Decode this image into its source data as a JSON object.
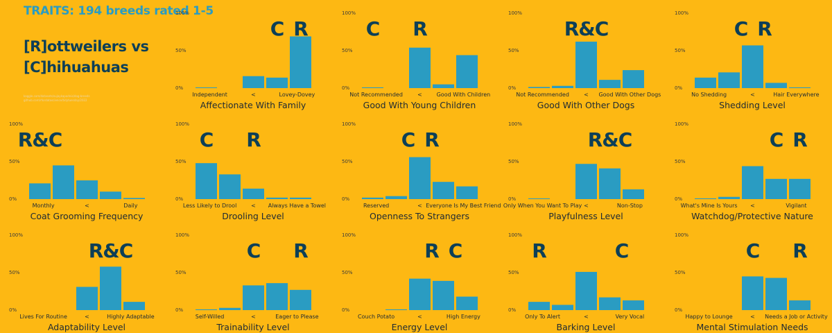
{
  "intro": {
    "title": "TRAITS: 194 breeds rated 1-5",
    "heading_line1": "[R]ottweilers vs",
    "heading_line2": "[C]hihuahuas",
    "source": "kaggle.com/datasets/sujaykapadnis/dog-breeds  github.com/rfordatascience/tidytuesday/2022"
  },
  "colors": {
    "background": "#FDB813",
    "bar": "#2a9cc2",
    "marker": "#0d3f57",
    "text": "#1e2a33"
  },
  "y_ticks": [
    "100%",
    "50%",
    "0%"
  ],
  "chart_data": [
    {
      "type": "bar",
      "title": "Affectionate With Family",
      "categories": [
        "1",
        "2",
        "3",
        "4",
        "5"
      ],
      "values": [
        0.5,
        0,
        16,
        14,
        69
      ],
      "ylim": [
        0,
        100
      ],
      "xlabel_left": "Independent",
      "xlabel_mid": "<",
      "xlabel_right": "Lovey-Dovey",
      "markers": [
        {
          "label": "C",
          "category": 4
        },
        {
          "label": "R",
          "category": 5
        }
      ]
    },
    {
      "type": "bar",
      "title": "Good With Young Children",
      "categories": [
        "1",
        "2",
        "3",
        "4",
        "5"
      ],
      "values": [
        1,
        0,
        54,
        5,
        44
      ],
      "ylim": [
        0,
        100
      ],
      "xlabel_left": "Not Recommended",
      "xlabel_mid": "<",
      "xlabel_right": "Good With Children",
      "markers": [
        {
          "label": "C",
          "category": 1
        },
        {
          "label": "R",
          "category": 3
        }
      ]
    },
    {
      "type": "bar",
      "title": "Good With Other Dogs",
      "categories": [
        "1",
        "2",
        "3",
        "4",
        "5"
      ],
      "values": [
        1.5,
        3,
        62,
        11,
        24
      ],
      "ylim": [
        0,
        100
      ],
      "xlabel_left": "Not Recommended",
      "xlabel_mid": "<",
      "xlabel_right": "Good With Other Dogs",
      "markers": [
        {
          "label": "R&C",
          "category": 3
        }
      ]
    },
    {
      "type": "bar",
      "title": "Shedding Level",
      "categories": [
        "1",
        "2",
        "3",
        "4",
        "5"
      ],
      "values": [
        14,
        21,
        57,
        7,
        1
      ],
      "ylim": [
        0,
        100
      ],
      "xlabel_left": "No Shedding",
      "xlabel_mid": "<",
      "xlabel_right": "Hair Everywhere",
      "markers": [
        {
          "label": "C",
          "category": 2.5
        },
        {
          "label": "R",
          "category": 3.5
        }
      ]
    },
    {
      "type": "bar",
      "title": "Coat Grooming Frequency",
      "categories": [
        "1",
        "2",
        "3",
        "4",
        "5"
      ],
      "values": [
        21,
        45,
        25,
        10,
        1.5
      ],
      "ylim": [
        0,
        100
      ],
      "xlabel_left": "Monthly",
      "xlabel_mid": "<",
      "xlabel_right": "Daily",
      "markers": [
        {
          "label": "R&C",
          "category": 1
        }
      ]
    },
    {
      "type": "bar",
      "title": "Drooling Level",
      "categories": [
        "1",
        "2",
        "3",
        "4",
        "5"
      ],
      "values": [
        48,
        33,
        14,
        2,
        2
      ],
      "ylim": [
        0,
        100
      ],
      "xlabel_left": "Less Likely to Drool",
      "xlabel_mid": "<",
      "xlabel_right": "Always Have a Towel",
      "markers": [
        {
          "label": "C",
          "category": 1
        },
        {
          "label": "R",
          "category": 3
        }
      ]
    },
    {
      "type": "bar",
      "title": "Openness To Strangers",
      "categories": [
        "1",
        "2",
        "3",
        "4",
        "5"
      ],
      "values": [
        2,
        4,
        56,
        23,
        17
      ],
      "ylim": [
        0,
        100
      ],
      "xlabel_left": "Reserved",
      "xlabel_mid": "<",
      "xlabel_right": "Everyone Is My Best Friend",
      "markers": [
        {
          "label": "C",
          "category": 2.5
        },
        {
          "label": "R",
          "category": 3.5
        }
      ]
    },
    {
      "type": "bar",
      "title": "Playfulness Level",
      "categories": [
        "1",
        "2",
        "3",
        "4",
        "5"
      ],
      "values": [
        0.5,
        0,
        47,
        41,
        13
      ],
      "ylim": [
        0,
        100
      ],
      "xlabel_left": "Only When You Want To Play",
      "xlabel_mid": "<",
      "xlabel_right": "Non-Stop",
      "markers": [
        {
          "label": "R&C",
          "category": 4
        }
      ]
    },
    {
      "type": "bar",
      "title": "Watchdog/Protective Nature",
      "categories": [
        "1",
        "2",
        "3",
        "4",
        "5"
      ],
      "values": [
        1,
        3,
        44,
        27,
        27
      ],
      "ylim": [
        0,
        100
      ],
      "xlabel_left": "What's Mine Is Yours",
      "xlabel_mid": "<",
      "xlabel_right": "Vigilant",
      "markers": [
        {
          "label": "C",
          "category": 4
        },
        {
          "label": "R",
          "category": 5
        }
      ]
    },
    {
      "type": "bar",
      "title": "Adaptability Level",
      "categories": [
        "1",
        "2",
        "3",
        "4",
        "5"
      ],
      "values": [
        0,
        0,
        31,
        58,
        11
      ],
      "ylim": [
        0,
        100
      ],
      "xlabel_left": "Lives For Routine",
      "xlabel_mid": "<",
      "xlabel_right": "Highly Adaptable",
      "markers": [
        {
          "label": "R&C",
          "category": 4
        }
      ]
    },
    {
      "type": "bar",
      "title": "Trainability Level",
      "categories": [
        "1",
        "2",
        "3",
        "4",
        "5"
      ],
      "values": [
        1,
        3,
        33,
        36,
        27
      ],
      "ylim": [
        0,
        100
      ],
      "xlabel_left": "Self-Willed",
      "xlabel_mid": "<",
      "xlabel_right": "Eager to Please",
      "markers": [
        {
          "label": "C",
          "category": 3
        },
        {
          "label": "R",
          "category": 5
        }
      ]
    },
    {
      "type": "bar",
      "title": "Energy Level",
      "categories": [
        "1",
        "2",
        "3",
        "4",
        "5"
      ],
      "values": [
        0,
        1,
        42,
        39,
        18
      ],
      "ylim": [
        0,
        100
      ],
      "xlabel_left": "Couch Potato",
      "xlabel_mid": "<",
      "xlabel_right": "High Energy",
      "markers": [
        {
          "label": "R",
          "category": 3.5
        },
        {
          "label": "C",
          "category": 4.5
        }
      ]
    },
    {
      "type": "bar",
      "title": "Barking Level",
      "categories": [
        "1",
        "2",
        "3",
        "4",
        "5"
      ],
      "values": [
        11,
        7,
        51,
        17,
        13
      ],
      "ylim": [
        0,
        100
      ],
      "xlabel_left": "Only To Alert",
      "xlabel_mid": "<",
      "xlabel_right": "Very Vocal",
      "markers": [
        {
          "label": "R",
          "category": 1
        },
        {
          "label": "C",
          "category": 4.5
        }
      ]
    },
    {
      "type": "bar",
      "title": "Mental Stimulation Needs",
      "categories": [
        "1",
        "2",
        "3",
        "4",
        "5"
      ],
      "values": [
        0,
        0,
        45,
        43,
        13
      ],
      "ylim": [
        0,
        100
      ],
      "xlabel_left": "Happy to Lounge",
      "xlabel_mid": "<",
      "xlabel_right": "Needs a Job or Activity",
      "markers": [
        {
          "label": "C",
          "category": 3
        },
        {
          "label": "R",
          "category": 5
        }
      ]
    }
  ]
}
